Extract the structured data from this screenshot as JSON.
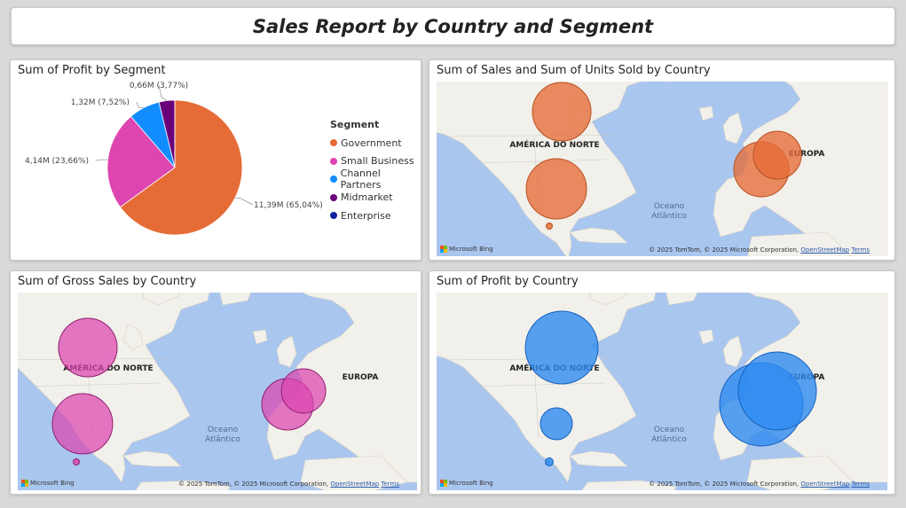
{
  "report_title": "Sales Report by Country and Segment",
  "colors": {
    "government": "#E66C37",
    "small_business": "#DD45B0",
    "channel_partners": "#118DFF",
    "midmarket": "#6B007B",
    "enterprise": "#12239E",
    "map_water": "#A9C6EF",
    "map_land": "#F2F0EA",
    "profit_bubble": "#2E8BF0"
  },
  "pie_card": {
    "title": "Sum of Profit by Segment",
    "legend_title": "Segment",
    "chart_data": {
      "type": "pie",
      "categories": [
        "Government",
        "Small Business",
        "Channel Partners",
        "Midmarket",
        "Enterprise"
      ],
      "values": [
        65.04,
        23.66,
        7.52,
        3.77,
        0.01
      ],
      "data_labels": [
        "11,39M (65,04%)",
        "4,14M (23,66%)",
        "1,32M (7,52%)",
        "0,66M (3,77%)",
        ""
      ]
    }
  },
  "maps": {
    "region_na": "AMÉRICA DO NORTE",
    "region_eu": "EUROPA",
    "ocean_line1": "Oceano",
    "ocean_line2": "Atlântico",
    "attribution_prefix": "© 2025 TomTom, © 2025 Microsoft Corporation,",
    "attribution_osm": "OpenStreetMap",
    "attribution_terms": "Terms",
    "bing_label": "Microsoft Bing"
  },
  "map_sales_units": {
    "title": "Sum of Sales and Sum of Units Sold by Country"
  },
  "map_gross_sales": {
    "title": "Sum of Gross Sales by Country"
  },
  "map_profit": {
    "title": "Sum of Profit by Country"
  }
}
